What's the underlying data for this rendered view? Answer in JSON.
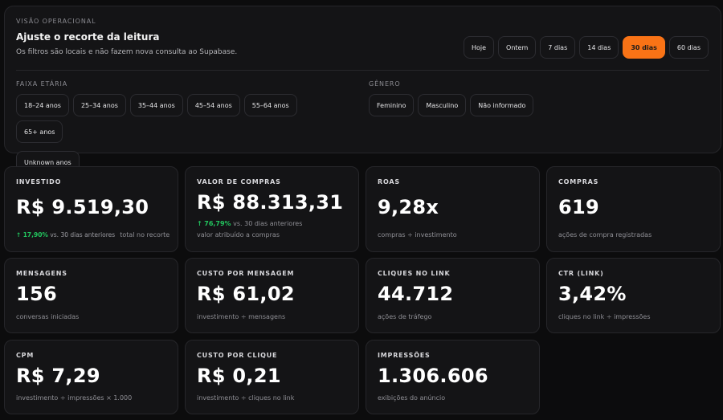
{
  "filters": {
    "eyebrow": "VISÃO OPERACIONAL",
    "title": "Ajuste o recorte da leitura",
    "subtitle": "Os filtros são locais e não fazem nova consulta ao Supabase.",
    "ranges": [
      "Hoje",
      "Ontem",
      "7 dias",
      "14 dias",
      "30 dias",
      "60 dias"
    ],
    "active_range": "30 dias",
    "age_label": "FAIXA ETÁRIA",
    "age_options": [
      "18–24 anos",
      "25–34 anos",
      "35–44 anos",
      "45–54 anos",
      "55–64 anos",
      "65+ anos",
      "Unknown anos"
    ],
    "gender_label": "GÊNERO",
    "gender_options": [
      "Feminino",
      "Masculino",
      "Não informado"
    ]
  },
  "metrics": {
    "investido": {
      "label": "INVESTIDO",
      "value": "R$ 9.519,30",
      "delta_arrow": "↑",
      "delta_pct": "17,90%",
      "delta_text": "vs. 30 dias anteriores",
      "sub": "total no recorte"
    },
    "valor_compras": {
      "label": "VALOR DE COMPRAS",
      "value": "R$ 88.313,31",
      "delta_arrow": "↑",
      "delta_pct": "76,79%",
      "delta_text": "vs. 30 dias anteriores",
      "sub": "valor atribuído a compras"
    },
    "roas": {
      "label": "ROAS",
      "value": "9,28x",
      "sub": "compras ÷ investimento"
    },
    "compras": {
      "label": "COMPRAS",
      "value": "619",
      "sub": "ações de compra registradas"
    },
    "mensagens": {
      "label": "MENSAGENS",
      "value": "156",
      "sub": "conversas iniciadas"
    },
    "custo_mensagem": {
      "label": "CUSTO POR MENSAGEM",
      "value": "R$ 61,02",
      "sub": "investimento ÷ mensagens"
    },
    "cliques_link": {
      "label": "CLIQUES NO LINK",
      "value": "44.712",
      "sub": "ações de tráfego"
    },
    "ctr_link": {
      "label": "CTR (LINK)",
      "value": "3,42%",
      "sub": "cliques no link ÷ impressões"
    },
    "cpm": {
      "label": "CPM",
      "value": "R$ 7,29",
      "sub": "investimento ÷ impressões × 1.000"
    },
    "custo_clique": {
      "label": "CUSTO POR CLIQUE",
      "value": "R$ 0,21",
      "sub": "investimento ÷ cliques no link"
    },
    "impressoes": {
      "label": "IMPRESSÕES",
      "value": "1.306.606",
      "sub": "exibições do anúncio"
    }
  },
  "colors": {
    "accent": "#f97316",
    "positive": "#22c55e",
    "background": "#0c0c0d",
    "card": "#141416"
  }
}
